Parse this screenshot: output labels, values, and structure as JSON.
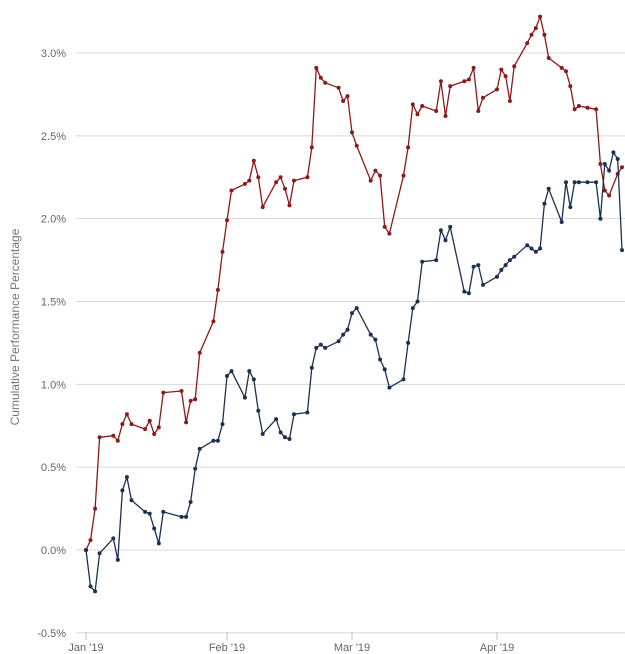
{
  "chart_data": {
    "type": "line",
    "title": "",
    "xlabel": "",
    "ylabel": "Cumulative Performance Percentage",
    "ylim": [
      -0.5,
      3.0
    ],
    "yticks": [
      -0.5,
      0.0,
      0.5,
      1.0,
      1.5,
      2.0,
      2.5,
      3.0
    ],
    "ytick_labels": [
      "-0.5%",
      "0.0%",
      "0.5%",
      "1.0%",
      "1.5%",
      "2.0%",
      "2.5%",
      "3.0%"
    ],
    "x_range": [
      "2019-01-01",
      "2019-04-30"
    ],
    "xticks": [
      "2019-01-01",
      "2019-02-01",
      "2019-03-01",
      "2019-04-01"
    ],
    "xtick_labels": [
      "Jan '19",
      "Feb '19",
      "Mar '19",
      "Apr '19"
    ],
    "grid": true,
    "legend": "none",
    "series": [
      {
        "color": "#8b1a1a",
        "points": [
          [
            "2019-01-01",
            0.0
          ],
          [
            "2019-01-02",
            0.06
          ],
          [
            "2019-01-03",
            0.25
          ],
          [
            "2019-01-04",
            0.68
          ],
          [
            "2019-01-07",
            0.69
          ],
          [
            "2019-01-08",
            0.66
          ],
          [
            "2019-01-09",
            0.76
          ],
          [
            "2019-01-10",
            0.82
          ],
          [
            "2019-01-11",
            0.76
          ],
          [
            "2019-01-14",
            0.73
          ],
          [
            "2019-01-15",
            0.78
          ],
          [
            "2019-01-16",
            0.7
          ],
          [
            "2019-01-17",
            0.74
          ],
          [
            "2019-01-18",
            0.95
          ],
          [
            "2019-01-22",
            0.96
          ],
          [
            "2019-01-23",
            0.77
          ],
          [
            "2019-01-24",
            0.9
          ],
          [
            "2019-01-25",
            0.91
          ],
          [
            "2019-01-26",
            1.19
          ],
          [
            "2019-01-29",
            1.38
          ],
          [
            "2019-01-30",
            1.57
          ],
          [
            "2019-01-31",
            1.8
          ],
          [
            "2019-02-01",
            1.99
          ],
          [
            "2019-02-02",
            2.17
          ],
          [
            "2019-02-05",
            2.21
          ],
          [
            "2019-02-06",
            2.23
          ],
          [
            "2019-02-07",
            2.35
          ],
          [
            "2019-02-08",
            2.25
          ],
          [
            "2019-02-09",
            2.07
          ],
          [
            "2019-02-12",
            2.22
          ],
          [
            "2019-02-13",
            2.25
          ],
          [
            "2019-02-14",
            2.18
          ],
          [
            "2019-02-15",
            2.08
          ],
          [
            "2019-02-16",
            2.23
          ],
          [
            "2019-02-19",
            2.25
          ],
          [
            "2019-02-20",
            2.43
          ],
          [
            "2019-02-21",
            2.91
          ],
          [
            "2019-02-22",
            2.85
          ],
          [
            "2019-02-23",
            2.82
          ],
          [
            "2019-02-26",
            2.79
          ],
          [
            "2019-02-27",
            2.71
          ],
          [
            "2019-02-28",
            2.74
          ],
          [
            "2019-03-01",
            2.52
          ],
          [
            "2019-03-02",
            2.44
          ],
          [
            "2019-03-05",
            2.23
          ],
          [
            "2019-03-06",
            2.29
          ],
          [
            "2019-03-07",
            2.26
          ],
          [
            "2019-03-08",
            1.95
          ],
          [
            "2019-03-09",
            1.91
          ],
          [
            "2019-03-12",
            2.26
          ],
          [
            "2019-03-13",
            2.43
          ],
          [
            "2019-03-14",
            2.69
          ],
          [
            "2019-03-15",
            2.63
          ],
          [
            "2019-03-16",
            2.68
          ],
          [
            "2019-03-19",
            2.65
          ],
          [
            "2019-03-20",
            2.83
          ],
          [
            "2019-03-21",
            2.62
          ],
          [
            "2019-03-22",
            2.8
          ],
          [
            "2019-03-25",
            2.83
          ],
          [
            "2019-03-26",
            2.84
          ],
          [
            "2019-03-27",
            2.91
          ],
          [
            "2019-03-28",
            2.65
          ],
          [
            "2019-03-29",
            2.73
          ],
          [
            "2019-04-01",
            2.78
          ],
          [
            "2019-04-02",
            2.9
          ],
          [
            "2019-04-03",
            2.86
          ],
          [
            "2019-04-04",
            2.71
          ],
          [
            "2019-04-05",
            2.92
          ],
          [
            "2019-04-08",
            3.06
          ],
          [
            "2019-04-09",
            3.11
          ],
          [
            "2019-04-10",
            3.15
          ],
          [
            "2019-04-11",
            3.22
          ],
          [
            "2019-04-12",
            3.11
          ],
          [
            "2019-04-13",
            2.97
          ],
          [
            "2019-04-16",
            2.91
          ],
          [
            "2019-04-17",
            2.89
          ],
          [
            "2019-04-18",
            2.8
          ],
          [
            "2019-04-19",
            2.66
          ],
          [
            "2019-04-20",
            2.68
          ],
          [
            "2019-04-22",
            2.67
          ],
          [
            "2019-04-24",
            2.66
          ],
          [
            "2019-04-25",
            2.33
          ],
          [
            "2019-04-26",
            2.17
          ],
          [
            "2019-04-27",
            2.14
          ],
          [
            "2019-04-29",
            2.27
          ],
          [
            "2019-04-30",
            2.31
          ]
        ]
      },
      {
        "color": "#1c3150",
        "points": [
          [
            "2019-01-01",
            0.0
          ],
          [
            "2019-01-02",
            -0.22
          ],
          [
            "2019-01-03",
            -0.25
          ],
          [
            "2019-01-04",
            -0.02
          ],
          [
            "2019-01-07",
            0.07
          ],
          [
            "2019-01-08",
            -0.06
          ],
          [
            "2019-01-09",
            0.36
          ],
          [
            "2019-01-10",
            0.44
          ],
          [
            "2019-01-11",
            0.3
          ],
          [
            "2019-01-14",
            0.23
          ],
          [
            "2019-01-15",
            0.22
          ],
          [
            "2019-01-16",
            0.13
          ],
          [
            "2019-01-17",
            0.04
          ],
          [
            "2019-01-18",
            0.23
          ],
          [
            "2019-01-22",
            0.2
          ],
          [
            "2019-01-23",
            0.2
          ],
          [
            "2019-01-24",
            0.29
          ],
          [
            "2019-01-25",
            0.49
          ],
          [
            "2019-01-26",
            0.61
          ],
          [
            "2019-01-29",
            0.66
          ],
          [
            "2019-01-30",
            0.66
          ],
          [
            "2019-01-31",
            0.76
          ],
          [
            "2019-02-01",
            1.05
          ],
          [
            "2019-02-02",
            1.08
          ],
          [
            "2019-02-05",
            0.92
          ],
          [
            "2019-02-06",
            1.08
          ],
          [
            "2019-02-07",
            1.03
          ],
          [
            "2019-02-08",
            0.84
          ],
          [
            "2019-02-09",
            0.7
          ],
          [
            "2019-02-12",
            0.79
          ],
          [
            "2019-02-13",
            0.71
          ],
          [
            "2019-02-14",
            0.68
          ],
          [
            "2019-02-15",
            0.67
          ],
          [
            "2019-02-16",
            0.82
          ],
          [
            "2019-02-19",
            0.83
          ],
          [
            "2019-02-20",
            1.1
          ],
          [
            "2019-02-21",
            1.22
          ],
          [
            "2019-02-22",
            1.24
          ],
          [
            "2019-02-23",
            1.22
          ],
          [
            "2019-02-26",
            1.26
          ],
          [
            "2019-02-27",
            1.3
          ],
          [
            "2019-02-28",
            1.33
          ],
          [
            "2019-03-01",
            1.43
          ],
          [
            "2019-03-02",
            1.46
          ],
          [
            "2019-03-05",
            1.3
          ],
          [
            "2019-03-06",
            1.27
          ],
          [
            "2019-03-07",
            1.15
          ],
          [
            "2019-03-08",
            1.09
          ],
          [
            "2019-03-09",
            0.98
          ],
          [
            "2019-03-12",
            1.03
          ],
          [
            "2019-03-13",
            1.25
          ],
          [
            "2019-03-14",
            1.46
          ],
          [
            "2019-03-15",
            1.5
          ],
          [
            "2019-03-16",
            1.74
          ],
          [
            "2019-03-19",
            1.75
          ],
          [
            "2019-03-20",
            1.93
          ],
          [
            "2019-03-21",
            1.87
          ],
          [
            "2019-03-22",
            1.95
          ],
          [
            "2019-03-25",
            1.56
          ],
          [
            "2019-03-26",
            1.55
          ],
          [
            "2019-03-27",
            1.71
          ],
          [
            "2019-03-28",
            1.72
          ],
          [
            "2019-03-29",
            1.6
          ],
          [
            "2019-04-01",
            1.65
          ],
          [
            "2019-04-02",
            1.69
          ],
          [
            "2019-04-03",
            1.72
          ],
          [
            "2019-04-04",
            1.75
          ],
          [
            "2019-04-05",
            1.77
          ],
          [
            "2019-04-08",
            1.84
          ],
          [
            "2019-04-09",
            1.82
          ],
          [
            "2019-04-10",
            1.8
          ],
          [
            "2019-04-11",
            1.82
          ],
          [
            "2019-04-12",
            2.09
          ],
          [
            "2019-04-13",
            2.18
          ],
          [
            "2019-04-16",
            1.98
          ],
          [
            "2019-04-17",
            2.22
          ],
          [
            "2019-04-18",
            2.07
          ],
          [
            "2019-04-19",
            2.22
          ],
          [
            "2019-04-20",
            2.22
          ],
          [
            "2019-04-22",
            2.22
          ],
          [
            "2019-04-24",
            2.22
          ],
          [
            "2019-04-25",
            2.0
          ],
          [
            "2019-04-26",
            2.33
          ],
          [
            "2019-04-27",
            2.29
          ],
          [
            "2019-04-28",
            2.4
          ],
          [
            "2019-04-29",
            2.36
          ],
          [
            "2019-04-30",
            1.81
          ]
        ]
      }
    ]
  }
}
